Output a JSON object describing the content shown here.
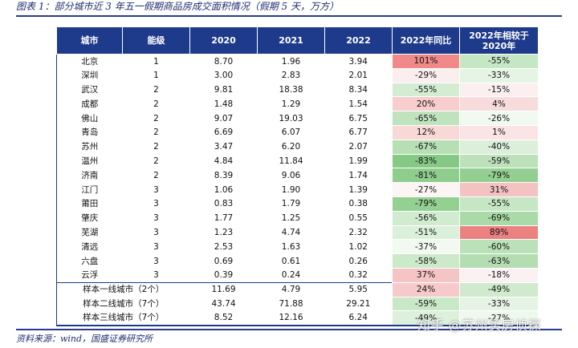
{
  "caption": "图表 1：部分城市近 3 年五一假期商品房成交面积情况（假期 5 天，万方）",
  "table": {
    "headers": [
      "城市",
      "能级",
      "2020",
      "2021",
      "2022",
      "2022年同比",
      "2022年相较于\n2020年"
    ],
    "rows": [
      {
        "city": "北京",
        "tier": "1",
        "y2020": "8.70",
        "y2021": "1.96",
        "y2022": "3.94",
        "yoy": "101%",
        "vs2020": "-55%",
        "yoy_color": "#f08a8a",
        "vs_color": "#c6e7c4"
      },
      {
        "city": "深圳",
        "tier": "1",
        "y2020": "3.00",
        "y2021": "2.83",
        "y2022": "2.01",
        "yoy": "-29%",
        "vs2020": "-33%",
        "yoy_color": "#fbeeee",
        "vs_color": "#e5f4e4"
      },
      {
        "city": "武汉",
        "tier": "2",
        "y2020": "9.81",
        "y2021": "18.38",
        "y2022": "8.34",
        "yoy": "-55%",
        "vs2020": "-15%",
        "yoy_color": "#d4ecd2",
        "vs_color": "#fbeff0"
      },
      {
        "city": "成都",
        "tier": "2",
        "y2020": "1.48",
        "y2021": "1.29",
        "y2022": "1.54",
        "yoy": "20%",
        "vs2020": "4%",
        "yoy_color": "#f7cdcd",
        "vs_color": "#f8dcdc"
      },
      {
        "city": "佛山",
        "tier": "2",
        "y2020": "9.07",
        "y2021": "19.03",
        "y2022": "6.75",
        "yoy": "-65%",
        "vs2020": "-26%",
        "yoy_color": "#bfe3bd",
        "vs_color": "#f2f9f1"
      },
      {
        "city": "青岛",
        "tier": "2",
        "y2020": "6.69",
        "y2021": "6.07",
        "y2022": "6.77",
        "yoy": "12%",
        "vs2020": "1%",
        "yoy_color": "#f9d8d8",
        "vs_color": "#fae4e4"
      },
      {
        "city": "苏州",
        "tier": "2",
        "y2020": "3.47",
        "y2021": "6.20",
        "y2022": "2.07",
        "yoy": "-67%",
        "vs2020": "-40%",
        "yoy_color": "#b6dfb4",
        "vs_color": "#dbefda"
      },
      {
        "city": "温州",
        "tier": "2",
        "y2020": "4.84",
        "y2021": "11.84",
        "y2022": "1.99",
        "yoy": "-83%",
        "vs2020": "-59%",
        "yoy_color": "#86c985",
        "vs_color": "#bde2bb"
      },
      {
        "city": "济南",
        "tier": "2",
        "y2020": "8.39",
        "y2021": "9.06",
        "y2022": "1.74",
        "yoy": "-81%",
        "vs2020": "-79%",
        "yoy_color": "#8ecd8c",
        "vs_color": "#93cf91"
      },
      {
        "city": "江门",
        "tier": "3",
        "y2020": "1.06",
        "y2021": "1.90",
        "y2022": "1.39",
        "yoy": "-27%",
        "vs2020": "31%",
        "yoy_color": "#fdf4f4",
        "vs_color": "#f4c2c2"
      },
      {
        "city": "莆田",
        "tier": "3",
        "y2020": "0.83",
        "y2021": "1.79",
        "y2022": "0.38",
        "yoy": "-79%",
        "vs2020": "-55%",
        "yoy_color": "#94d092",
        "vs_color": "#c6e7c4"
      },
      {
        "city": "肇庆",
        "tier": "3",
        "y2020": "1.77",
        "y2021": "1.25",
        "y2022": "0.55",
        "yoy": "-56%",
        "vs2020": "-69%",
        "yoy_color": "#d1ebcf",
        "vs_color": "#a9daa7"
      },
      {
        "city": "芜湖",
        "tier": "3",
        "y2020": "1.23",
        "y2021": "4.74",
        "y2022": "2.32",
        "yoy": "-51%",
        "vs2020": "89%",
        "yoy_color": "#dbf0da",
        "vs_color": "#ec8181"
      },
      {
        "city": "清远",
        "tier": "3",
        "y2020": "2.53",
        "y2021": "1.63",
        "y2022": "1.02",
        "yoy": "-37%",
        "vs2020": "-60%",
        "yoy_color": "#f1f9f0",
        "vs_color": "#bae1b8"
      },
      {
        "city": "六盘",
        "tier": "3",
        "y2020": "0.69",
        "y2021": "0.61",
        "y2022": "0.26",
        "yoy": "-58%",
        "vs2020": "-63%",
        "yoy_color": "#cce9ca",
        "vs_color": "#b4deb2"
      },
      {
        "city": "云浮",
        "tier": "3",
        "y2020": "0.39",
        "y2021": "0.24",
        "y2022": "0.32",
        "yoy": "37%",
        "vs2020": "-18%",
        "yoy_color": "#f5c4c4",
        "vs_color": "#fcf1f2"
      }
    ],
    "summary_rows": [
      {
        "label": "样本一线城市（2个）",
        "y2020": "11.69",
        "y2021": "4.79",
        "y2022": "5.95",
        "yoy": "24%",
        "vs2020": "-49%",
        "yoy_color": "#f6caca",
        "vs_color": "#d0eace"
      },
      {
        "label": "样本二线城市（7个）",
        "y2020": "43.74",
        "y2021": "71.88",
        "y2022": "29.21",
        "yoy": "-59%",
        "vs2020": "-33%",
        "yoy_color": "#c9e8c7",
        "vs_color": "#e5f4e4"
      },
      {
        "label": "样本三线城市（7个）",
        "y2020": "8.52",
        "y2021": "12.16",
        "y2022": "6.24",
        "yoy": "-49%",
        "vs2020": "-27%",
        "yoy_color": "#ddf0dc",
        "vs_color": "#eef8ed"
      }
    ]
  },
  "source": "资料来源：wind，国盛证券研究所",
  "watermark": "知乎 @苏州买房侦探"
}
